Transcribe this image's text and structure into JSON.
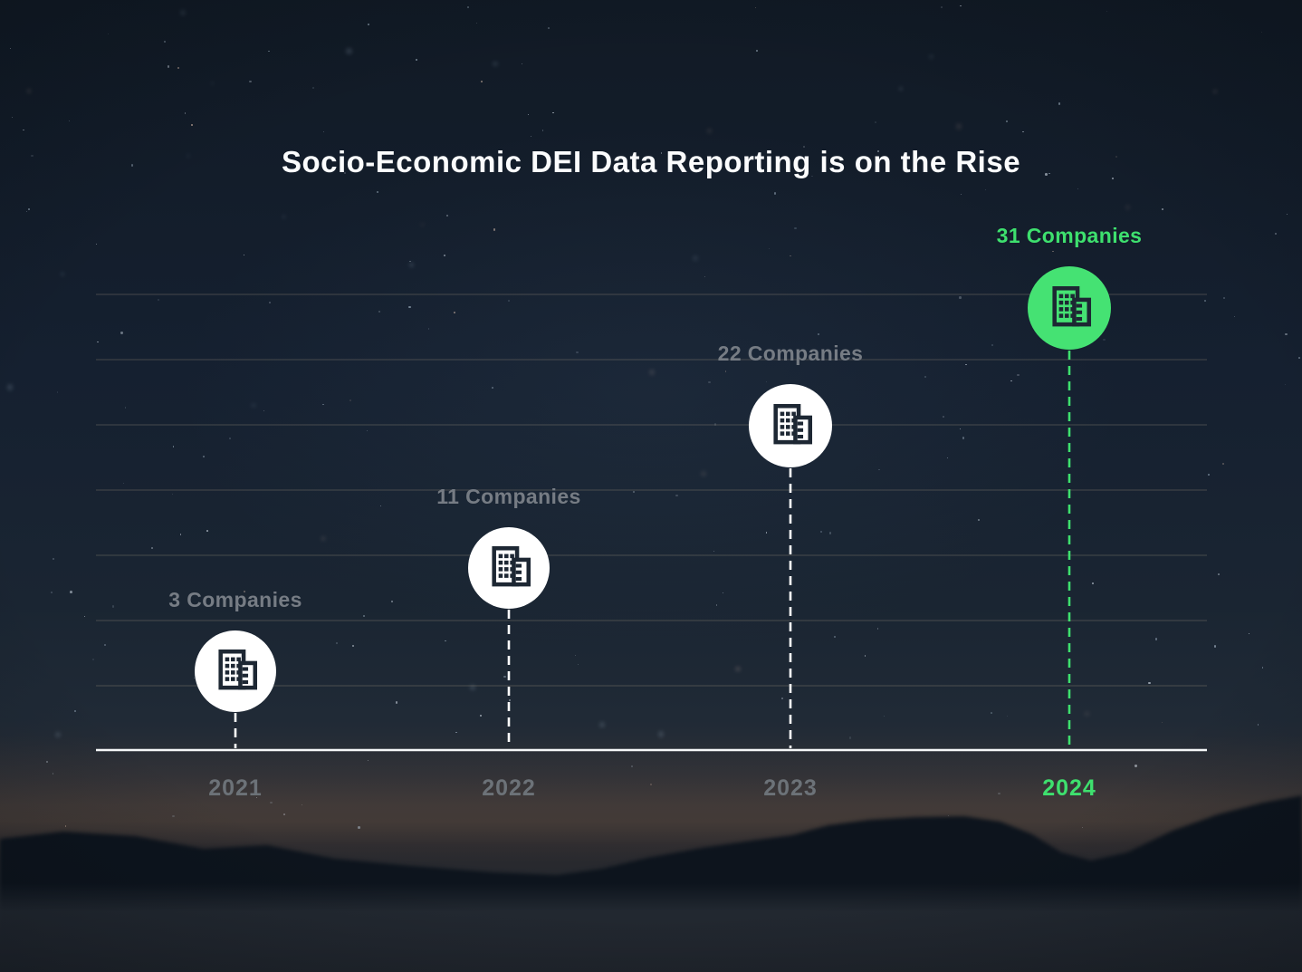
{
  "title": "Socio-Economic DEI Data Reporting is on the Rise",
  "chart_data": {
    "type": "scatter",
    "subtype": "lollipop-timeline",
    "categories": [
      "2021",
      "2022",
      "2023",
      "2024"
    ],
    "values": [
      3,
      11,
      22,
      31
    ],
    "unit": "Companies",
    "point_labels": [
      "3 Companies",
      "11 Companies",
      "22 Companies",
      "31 Companies"
    ],
    "title": "Socio-Economic DEI Data Reporting is on the Rise",
    "xlabel": "",
    "ylabel": "",
    "highlighted_category": "2024",
    "gridlines": 7,
    "grid": "on",
    "legend": "none",
    "marker_icon": "building-icon"
  },
  "colors": {
    "accent_green": "#3ee06e",
    "circle_green": "#45e273",
    "circle_white": "#ffffff",
    "icon_dark": "#1d2733",
    "label_gray": "#767c84",
    "year_gray": "#6c7278",
    "title_white": "#fbfcfd",
    "background_navy": "#16202d",
    "gridline_tan": "rgba(175,160,135,0.32)"
  }
}
